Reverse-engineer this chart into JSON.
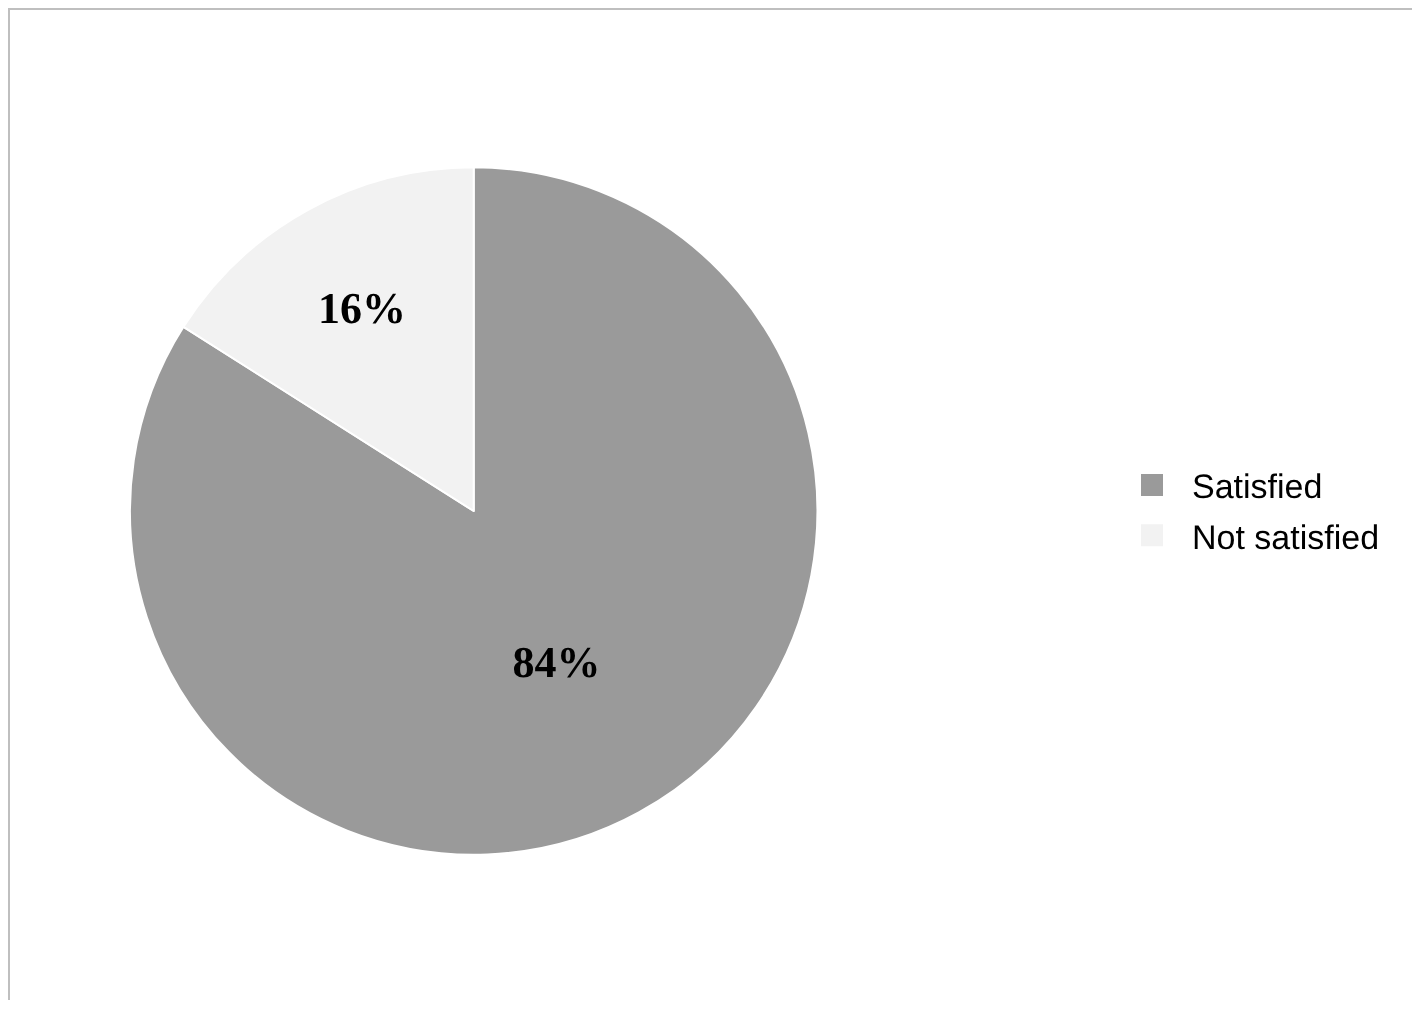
{
  "chart_data": {
    "type": "pie",
    "categories": [
      "Satisfied",
      "Not satisfied"
    ],
    "values": [
      84,
      16
    ],
    "colors": [
      "#9a9a9a",
      "#f2f2f2"
    ],
    "value_labels": [
      "84%",
      "16%"
    ],
    "legend": "right"
  }
}
